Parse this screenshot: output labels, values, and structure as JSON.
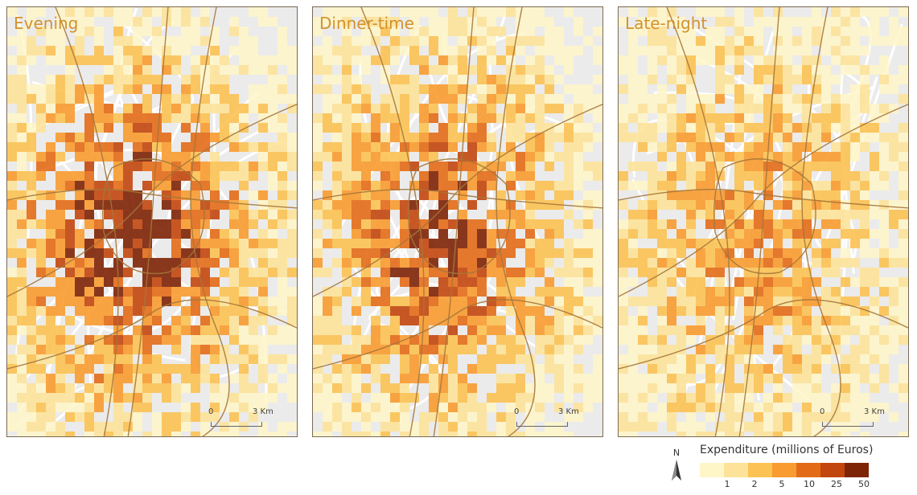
{
  "panels": [
    {
      "id": "evening",
      "title": "Evening",
      "intensity": 1.0
    },
    {
      "id": "dinner",
      "title": "Dinner-time",
      "intensity": 0.9
    },
    {
      "id": "late",
      "title": "Late-night",
      "intensity": 0.6
    }
  ],
  "scale_bar": {
    "start": "0",
    "end": "3 Km"
  },
  "legend": {
    "title": "Expenditure (millions of Euros)",
    "colors": [
      "#fff6c8",
      "#fde39a",
      "#fcc253",
      "#f89b30",
      "#e36b17",
      "#c2470e",
      "#7e2406"
    ],
    "ticks": [
      "1",
      "2",
      "5",
      "10",
      "25",
      "50"
    ]
  },
  "north_arrow": {
    "label": "N"
  },
  "colors": {
    "background_map": "#ececec",
    "roads": "#a5753a",
    "panel_border": "#7a6a52"
  }
}
